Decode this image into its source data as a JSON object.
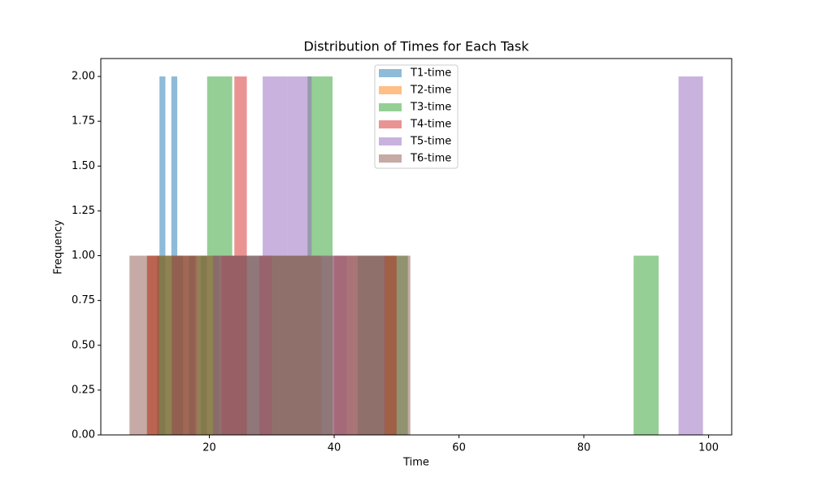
{
  "chart_data": {
    "type": "histogram",
    "title": "Distribution of Times for Each Task",
    "x_label": "Time",
    "y_label": "Frequency",
    "xlim": [
      2.6,
      103.7
    ],
    "ylim": [
      0,
      2.1
    ],
    "xticks": [
      20,
      40,
      60,
      80,
      100
    ],
    "yticks": [
      {
        "value": 0,
        "label": "0.00"
      },
      {
        "value": 0.25,
        "label": "0.25"
      },
      {
        "value": 0.5,
        "label": "0.50"
      },
      {
        "value": 0.75,
        "label": "0.75"
      },
      {
        "value": 1,
        "label": "1.00"
      },
      {
        "value": 1.25,
        "label": "1.25"
      },
      {
        "value": 1.5,
        "label": "1.50"
      },
      {
        "value": 1.75,
        "label": "1.75"
      },
      {
        "value": 2,
        "label": "2.00"
      }
    ],
    "opacity": 0.5,
    "legend": "upper center",
    "series": [
      {
        "name": "T1-time",
        "color": "#1f77b4",
        "bins": [
          12.0,
          12.95,
          13.9,
          14.85,
          15.8,
          16.75,
          17.7,
          18.65,
          19.6,
          20.55,
          21.5
        ],
        "values": [
          2,
          0,
          2,
          1,
          0,
          1,
          0,
          1,
          0,
          1
        ]
      },
      {
        "name": "T2-time",
        "color": "#ff7f0e",
        "bins": [
          10,
          14,
          18,
          22,
          26,
          30,
          34,
          38,
          42,
          46,
          50
        ],
        "values": [
          1,
          0,
          1,
          1,
          0,
          1,
          1,
          0,
          1,
          1
        ]
      },
      {
        "name": "T3-time",
        "color": "#2ca02c",
        "bins": [
          11.6,
          15.62,
          19.64,
          23.66,
          27.68,
          31.7,
          35.72,
          39.74,
          43.76,
          47.78,
          51.8,
          55.82,
          59.84,
          63.86,
          67.88,
          71.9,
          75.92,
          79.94,
          83.96,
          87.98,
          92.0
        ],
        "values": [
          1,
          1,
          2,
          1,
          1,
          1,
          2,
          0,
          1,
          1,
          0,
          0,
          0,
          0,
          0,
          0,
          0,
          0,
          0,
          1
        ]
      },
      {
        "name": "T4-time",
        "color": "#d62728",
        "bins": [
          10,
          12,
          14,
          16,
          18,
          20,
          22,
          24,
          26,
          28,
          30,
          32,
          34,
          36,
          38,
          40,
          42,
          44,
          46,
          48,
          50
        ],
        "values": [
          1,
          0,
          1,
          1,
          0,
          0,
          1,
          2,
          0,
          1,
          0,
          0,
          0,
          0,
          0,
          1,
          0,
          0,
          0,
          1
        ]
      },
      {
        "name": "T5-time",
        "color": "#9467bd",
        "bins": [
          20.7,
          24.62,
          28.54,
          32.46,
          36.38,
          40.3,
          44.22,
          48.14,
          52.06,
          55.98,
          59.9,
          63.82,
          67.74,
          71.66,
          75.58,
          79.5,
          83.42,
          87.34,
          91.26,
          95.18,
          99.1
        ],
        "values": [
          1,
          1,
          2,
          2,
          1,
          1,
          1,
          0,
          0,
          0,
          0,
          0,
          0,
          0,
          0,
          0,
          0,
          0,
          0,
          2
        ]
      },
      {
        "name": "T6-time",
        "color": "#8c564b",
        "bins": [
          7.2,
          10.2,
          13.2,
          16.2,
          19.2,
          22.2,
          25.2,
          28.2,
          31.2,
          34.2,
          37.2,
          40.2,
          43.2,
          46.2,
          49.2,
          52.2
        ],
        "values": [
          1,
          1,
          1,
          1,
          1,
          1,
          1,
          1,
          1,
          1,
          1,
          1,
          1,
          1,
          1
        ]
      }
    ]
  }
}
